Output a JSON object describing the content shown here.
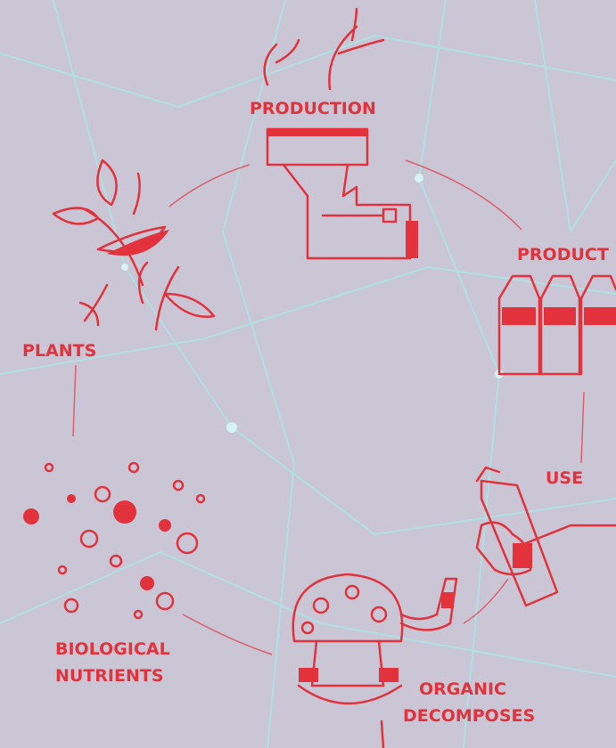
{
  "nodes": [
    {
      "label": [
        "PRODUCTION"
      ]
    },
    {
      "label": [
        "PRODUCT"
      ]
    },
    {
      "label": [
        "USE"
      ]
    },
    {
      "label": [
        "ORGANIC",
        "DECOMPOSES"
      ]
    },
    {
      "label": [
        "BIOLOGICAL",
        "NUTRIENTS"
      ]
    },
    {
      "label": [
        "PLANTS"
      ]
    }
  ]
}
